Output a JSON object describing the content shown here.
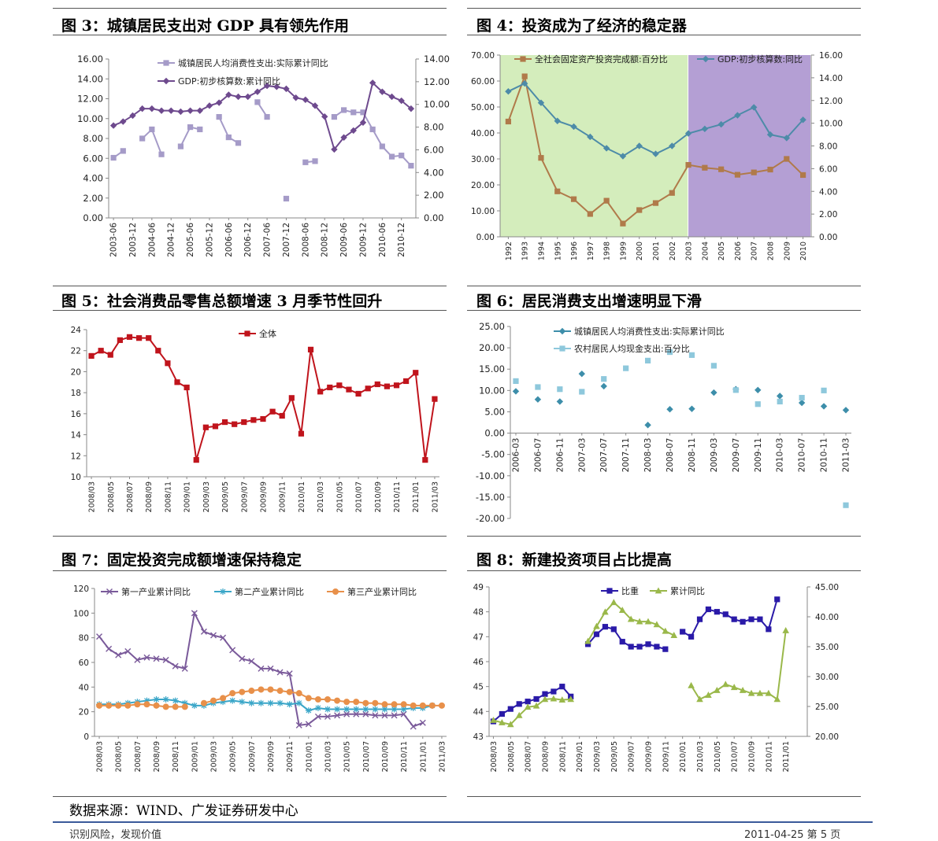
{
  "figures": [
    {
      "title": "图 3：城镇居民支出对 GDP 具有领先作用"
    },
    {
      "title": "图 4：投资成为了经济的稳定器"
    },
    {
      "title": "图 5：社会消费品零售总额增速 3 月季节性回升"
    },
    {
      "title": "图 6：居民消费支出增速明显下滑"
    },
    {
      "title": "图 7：固定投资完成额增速保持稳定"
    },
    {
      "title": "图 8：新建投资项目占比提高"
    }
  ],
  "source": "数据来源：WIND、广发证券研发中心",
  "footer": {
    "left": "识别风险，发现价值",
    "right": "2011-04-25  第 5 页"
  },
  "colors": {
    "rule": "#555555",
    "footer_rule": "#3a5a9a"
  },
  "chart_data": [
    {
      "type": "line",
      "x": [
        "2003-06",
        "2003-09",
        "2003-12",
        "2004-03",
        "2004-06",
        "2004-09",
        "2004-12",
        "2005-03",
        "2005-06",
        "2005-09",
        "2005-12",
        "2006-03",
        "2006-06",
        "2006-09",
        "2006-12",
        "2007-03",
        "2007-06",
        "2007-09",
        "2007-12",
        "2008-03",
        "2008-06",
        "2008-09",
        "2008-12",
        "2009-03",
        "2009-06",
        "2009-09",
        "2009-12",
        "2010-03",
        "2010-06",
        "2010-09",
        "2010-12",
        "2011-03"
      ],
      "xticks": [
        "2003-06",
        "2003-12",
        "2004-06",
        "2004-12",
        "2005-06",
        "2005-12",
        "2006-06",
        "2006-12",
        "2007-06",
        "2007-12",
        "2008-06",
        "2008-12",
        "2009-06",
        "2009-12",
        "2010-06",
        "2010-12"
      ],
      "series": [
        {
          "name": "城镇居民人均消费性支出:实际累计同比",
          "axis": "right",
          "color": "#a59bc8",
          "marker": "square",
          "values": [
            5.3,
            5.9,
            null,
            7.0,
            7.8,
            5.6,
            null,
            6.3,
            8.0,
            7.8,
            null,
            8.9,
            7.1,
            6.6,
            null,
            10.2,
            8.9,
            null,
            1.7,
            null,
            4.9,
            5.0,
            null,
            8.9,
            9.5,
            9.3,
            9.3,
            7.8,
            6.3,
            5.4,
            5.5,
            4.6
          ]
        },
        {
          "name": "GDP:初步核算数:累计同比",
          "axis": "left",
          "color": "#6e4a8e",
          "marker": "diamond",
          "values": [
            9.3,
            9.7,
            10.3,
            11.0,
            11.0,
            10.8,
            10.8,
            10.7,
            10.8,
            10.8,
            11.3,
            11.6,
            12.4,
            12.2,
            12.2,
            12.7,
            13.3,
            13.2,
            13.0,
            12.1,
            11.9,
            11.3,
            10.2,
            6.9,
            8.1,
            8.8,
            9.6,
            13.6,
            12.7,
            12.2,
            11.8,
            11.0
          ]
        }
      ],
      "ylim_left": [
        0,
        16
      ],
      "yticks_left": [
        "0.00",
        "2.00",
        "4.00",
        "6.00",
        "8.00",
        "10.00",
        "12.00",
        "14.00",
        "16.00"
      ],
      "ylim_right": [
        0,
        14
      ],
      "yticks_right": [
        "0.00",
        "2.00",
        "4.00",
        "6.00",
        "8.00",
        "10.00",
        "12.00",
        "14.00"
      ],
      "legend": "top"
    },
    {
      "type": "line",
      "x": [
        "1992",
        "1993",
        "1994",
        "1995",
        "1996",
        "1997",
        "1998",
        "1999",
        "2000",
        "2001",
        "2002",
        "2003",
        "2004",
        "2005",
        "2006",
        "2007",
        "2008",
        "2009",
        "2010"
      ],
      "xticks": [
        "1992",
        "1993",
        "1994",
        "1995",
        "1996",
        "1997",
        "1998",
        "1999",
        "2000",
        "2001",
        "2002",
        "2003",
        "2004",
        "2005",
        "2006",
        "2007",
        "2008",
        "2009",
        "2010"
      ],
      "shading": [
        {
          "from": "1992",
          "to": "2003",
          "color": "#d4edbc"
        },
        {
          "from": "2003",
          "to": "2010",
          "color": "#b49fd4"
        }
      ],
      "series": [
        {
          "name": "全社会固定资产投资完成额:百分比",
          "axis": "left",
          "color": "#b07a4a",
          "marker": "square",
          "values": [
            44.4,
            61.8,
            30.4,
            17.5,
            14.5,
            8.8,
            13.9,
            5.1,
            10.3,
            13.0,
            16.9,
            27.7,
            26.6,
            26.0,
            23.9,
            24.8,
            25.9,
            30.0,
            23.8
          ]
        },
        {
          "name": "GDP:初步核算数:同比",
          "axis": "right",
          "color": "#4d8ba8",
          "marker": "diamond",
          "values": [
            12.8,
            13.5,
            11.8,
            10.2,
            9.7,
            8.8,
            7.8,
            7.1,
            8.0,
            7.3,
            8.0,
            9.1,
            9.5,
            9.9,
            10.7,
            11.4,
            9.0,
            8.7,
            10.3
          ]
        }
      ],
      "ylim_left": [
        0,
        70
      ],
      "yticks_left": [
        "0.00",
        "10.00",
        "20.00",
        "30.00",
        "40.00",
        "50.00",
        "60.00",
        "70.00"
      ],
      "ylim_right": [
        0,
        16
      ],
      "yticks_right": [
        "0.00",
        "2.00",
        "4.00",
        "6.00",
        "8.00",
        "10.00",
        "12.00",
        "14.00",
        "16.00"
      ],
      "legend": "top"
    },
    {
      "type": "line",
      "x": [
        "2008/03",
        "2008/04",
        "2008/05",
        "2008/06",
        "2008/07",
        "2008/08",
        "2008/09",
        "2008/10",
        "2008/11",
        "2008/12",
        "2009/01",
        "2009/02",
        "2009/03",
        "2009/04",
        "2009/05",
        "2009/06",
        "2009/07",
        "2009/08",
        "2009/09",
        "2009/10",
        "2009/11",
        "2009/12",
        "2010/01",
        "2010/02",
        "2010/03",
        "2010/04",
        "2010/05",
        "2010/06",
        "2010/07",
        "2010/08",
        "2010/09",
        "2010/10",
        "2010/11",
        "2010/12",
        "2011/01",
        "2011/02",
        "2011/03"
      ],
      "xticks": [
        "2008/03",
        "2008/05",
        "2008/07",
        "2008/09",
        "2008/11",
        "2009/01",
        "2009/03",
        "2009/05",
        "2009/07",
        "2009/09",
        "2009/11",
        "2010/01",
        "2010/03",
        "2010/05",
        "2010/07",
        "2010/09",
        "2010/11",
        "2011/01",
        "2011/03"
      ],
      "series": [
        {
          "name": "全体",
          "color": "#c0141c",
          "marker": "square",
          "values": [
            21.5,
            22.0,
            21.6,
            23.0,
            23.3,
            23.2,
            23.2,
            22.0,
            20.8,
            19.0,
            18.5,
            11.6,
            14.7,
            14.8,
            15.2,
            15.0,
            15.2,
            15.4,
            15.5,
            16.2,
            15.8,
            17.5,
            14.1,
            22.1,
            18.1,
            18.5,
            18.7,
            18.3,
            17.9,
            18.4,
            18.8,
            18.6,
            18.7,
            19.1,
            19.9,
            11.6,
            17.4
          ]
        }
      ],
      "ylim": [
        10,
        24
      ],
      "yticks": [
        "10",
        "12",
        "14",
        "16",
        "18",
        "20",
        "22",
        "24"
      ],
      "legend": "top"
    },
    {
      "type": "line",
      "x": [
        "2006-03",
        "2006-05",
        "2006-07",
        "2006-09",
        "2006-11",
        "2007-01",
        "2007-03",
        "2007-05",
        "2007-07",
        "2007-09",
        "2007-11",
        "2008-01",
        "2008-03",
        "2008-05",
        "2008-07",
        "2008-09",
        "2008-11",
        "2009-01",
        "2009-03",
        "2009-05",
        "2009-07",
        "2009-09",
        "2009-11",
        "2010-01",
        "2010-03",
        "2010-05",
        "2010-07",
        "2010-09",
        "2010-11",
        "2011-01",
        "2011-03"
      ],
      "xticks": [
        "2006-03",
        "2006-07",
        "2006-11",
        "2007-03",
        "2007-07",
        "2007-11",
        "2008-03",
        "2008-07",
        "2008-11",
        "2009-03",
        "2009-07",
        "2009-11",
        "2010-03",
        "2010-07",
        "2010-11",
        "2011-03"
      ],
      "series": [
        {
          "name": "城镇居民人均消费性支出:实际累计同比",
          "color": "#3d8eaa",
          "marker": "diamond",
          "values": [
            9.8,
            null,
            7.9,
            null,
            7.4,
            null,
            13.9,
            null,
            11.0,
            null,
            null,
            null,
            1.9,
            null,
            5.6,
            null,
            5.7,
            null,
            9.5,
            null,
            10.3,
            null,
            10.1,
            null,
            8.7,
            null,
            7.1,
            null,
            6.3,
            null,
            5.4
          ]
        },
        {
          "name": "农村居民人均现金支出:百分比",
          "color": "#8ec8dc",
          "marker": "square",
          "values": [
            12.2,
            null,
            10.8,
            null,
            10.3,
            null,
            9.7,
            null,
            12.7,
            null,
            15.2,
            null,
            17.0,
            null,
            19.0,
            null,
            18.3,
            null,
            15.8,
            null,
            10.1,
            null,
            6.8,
            null,
            7.4,
            null,
            8.3,
            null,
            10.0,
            null,
            -16.9
          ]
        }
      ],
      "ylim": [
        -20,
        25
      ],
      "yticks": [
        "-20.00",
        "-15.00",
        "-10.00",
        "-5.00",
        "0.00",
        "5.00",
        "10.00",
        "15.00",
        "20.00",
        "25.00"
      ],
      "legend": "top"
    },
    {
      "type": "line",
      "x": [
        "2008/03",
        "2008/04",
        "2008/05",
        "2008/06",
        "2008/07",
        "2008/08",
        "2008/09",
        "2008/10",
        "2008/11",
        "2008/12",
        "2009/01",
        "2009/02",
        "2009/03",
        "2009/04",
        "2009/05",
        "2009/06",
        "2009/07",
        "2009/08",
        "2009/09",
        "2009/10",
        "2009/11",
        "2009/12",
        "2010/01",
        "2010/02",
        "2010/03",
        "2010/04",
        "2010/05",
        "2010/06",
        "2010/07",
        "2010/08",
        "2010/09",
        "2010/10",
        "2010/11",
        "2010/12",
        "2011/01",
        "2011/02",
        "2011/03"
      ],
      "xticks": [
        "2008/03",
        "2008/05",
        "2008/07",
        "2008/09",
        "2008/11",
        "2009/01",
        "2009/03",
        "2009/05",
        "2009/07",
        "2009/09",
        "2009/11",
        "2010/01",
        "2010/03",
        "2010/05",
        "2010/07",
        "2010/09",
        "2010/11",
        "2011/01",
        "2011/03"
      ],
      "series": [
        {
          "name": "第一产业累计同比",
          "color": "#7a5a9a",
          "marker": "cross",
          "values": [
            81,
            71,
            66,
            69,
            62,
            64,
            63,
            62,
            57,
            55,
            100,
            85,
            82,
            80,
            70,
            63,
            61,
            55,
            55,
            52,
            51,
            9,
            10,
            16,
            16,
            17,
            18,
            18,
            18,
            17,
            17,
            17,
            18,
            8,
            11,
            null,
            null
          ]
        },
        {
          "name": "第二产业累计同比",
          "color": "#3aa6c8",
          "marker": "star",
          "values": [
            26,
            26,
            26,
            27,
            28,
            29,
            30,
            30,
            29,
            27,
            25,
            25,
            27,
            28,
            29,
            28,
            27,
            27,
            27,
            27,
            26,
            27,
            21,
            23,
            22,
            22,
            22,
            22,
            22,
            22,
            22,
            22,
            22,
            23,
            23,
            25,
            null
          ]
        },
        {
          "name": "第三产业累计同比",
          "color": "#e8904a",
          "marker": "circle",
          "values": [
            25,
            25,
            25,
            25,
            26,
            26,
            25,
            24,
            24,
            24,
            null,
            27,
            29,
            31,
            35,
            36,
            37,
            38,
            38,
            37,
            36,
            35,
            31,
            30,
            30,
            29,
            28,
            28,
            27,
            27,
            26,
            26,
            26,
            25,
            25,
            25,
            25
          ]
        }
      ],
      "ylim": [
        0,
        120
      ],
      "yticks": [
        "0",
        "20",
        "40",
        "60",
        "80",
        "100",
        "120"
      ],
      "legend": "top"
    },
    {
      "type": "line",
      "x": [
        "2008/03",
        "2008/04",
        "2008/05",
        "2008/06",
        "2008/07",
        "2008/08",
        "2008/09",
        "2008/10",
        "2008/11",
        "2008/12",
        "2009/01",
        "2009/02",
        "2009/03",
        "2009/04",
        "2009/05",
        "2009/06",
        "2009/07",
        "2009/08",
        "2009/09",
        "2009/10",
        "2009/11",
        "2009/12",
        "2010/01",
        "2010/02",
        "2010/03",
        "2010/04",
        "2010/05",
        "2010/06",
        "2010/07",
        "2010/08",
        "2010/09",
        "2010/10",
        "2010/11",
        "2010/12",
        "2011/01",
        "2011/02",
        "2011/03"
      ],
      "xticks": [
        "2008/03",
        "2008/05",
        "2008/07",
        "2008/09",
        "2008/11",
        "2009/01",
        "2009/03",
        "2009/05",
        "2009/07",
        "2009/09",
        "2009/11",
        "2010/01",
        "2010/03",
        "2010/05",
        "2010/07",
        "2010/09",
        "2010/11",
        "2011/01"
      ],
      "series": [
        {
          "name": "比重",
          "axis": "left",
          "color": "#2a1aa8",
          "marker": "square",
          "values": [
            43.6,
            43.9,
            44.1,
            44.3,
            44.4,
            44.5,
            44.7,
            44.8,
            45.0,
            44.6,
            null,
            46.7,
            47.1,
            47.4,
            47.3,
            46.8,
            46.6,
            46.6,
            46.7,
            46.6,
            46.5,
            null,
            47.2,
            47.0,
            47.7,
            48.1,
            48.0,
            47.9,
            47.7,
            47.6,
            47.7,
            47.7,
            47.3,
            48.5,
            null,
            null,
            null
          ]
        },
        {
          "name": "累计同比",
          "axis": "right",
          "color": "#9ab84a",
          "marker": "triangle",
          "values": [
            22.7,
            22.3,
            22.0,
            23.5,
            24.9,
            25.1,
            26.2,
            26.3,
            26.1,
            26.2,
            null,
            35.9,
            38.4,
            40.8,
            42.4,
            41.1,
            39.6,
            39.2,
            39.2,
            38.7,
            37.6,
            36.9,
            null,
            28.5,
            26.2,
            26.9,
            27.7,
            28.7,
            28.2,
            27.7,
            27.2,
            27.2,
            27.2,
            26.2,
            37.7,
            null,
            null
          ]
        }
      ],
      "ylim_left": [
        43,
        49
      ],
      "yticks_left": [
        "43",
        "44",
        "45",
        "46",
        "47",
        "48",
        "49"
      ],
      "ylim_right": [
        20,
        45
      ],
      "yticks_right": [
        "20.00",
        "25.00",
        "30.00",
        "35.00",
        "40.00",
        "45.00"
      ],
      "legend": "top"
    }
  ]
}
